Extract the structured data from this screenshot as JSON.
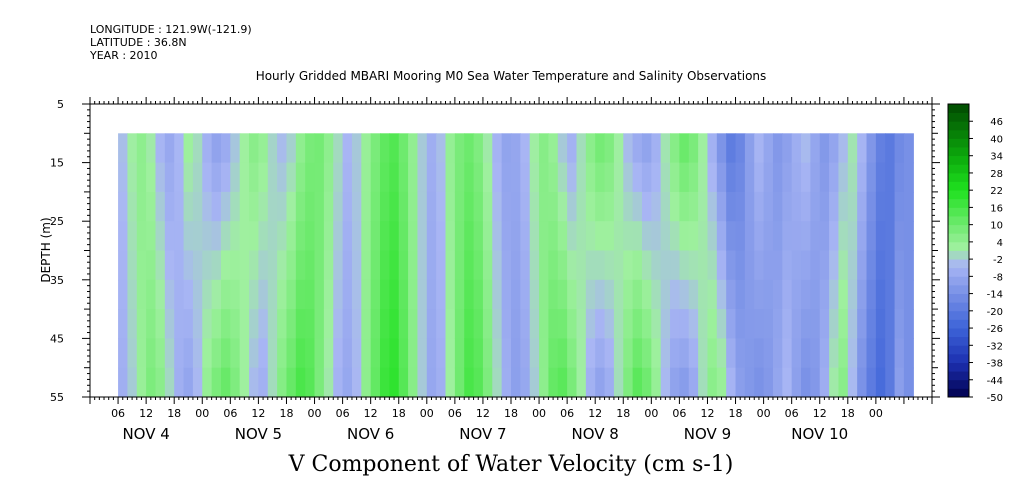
{
  "header": {
    "longitude": "LONGITUDE : 121.9W(-121.9)",
    "latitude": "LATITUDE : 36.8N",
    "year": "YEAR : 2010"
  },
  "chart_data": {
    "type": "heatmap",
    "title": "Hourly Gridded MBARI Mooring M0 Sea Water Temperature and Salinity Observations",
    "xlabel": "V Component of Water Velocity (cm s-1)",
    "ylabel": "DEPTH (m)",
    "ylim": [
      5,
      55
    ],
    "y_inverted": true,
    "y_ticks": [
      5,
      15,
      25,
      35,
      45,
      55
    ],
    "y_data_range": [
      10,
      55
    ],
    "x_range_hours": [
      0,
      180
    ],
    "x_data_range_hours": [
      7,
      176
    ],
    "x_hour_ticks": [
      "06",
      "12",
      "18",
      "00",
      "06",
      "12",
      "18",
      "00",
      "06",
      "12",
      "18",
      "00",
      "06",
      "12",
      "18",
      "00",
      "06",
      "12",
      "18",
      "00",
      "06",
      "12",
      "18",
      "00",
      "06",
      "12",
      "18",
      "00"
    ],
    "x_day_labels": [
      "NOV 4",
      "NOV 5",
      "NOV 6",
      "NOV 7",
      "NOV 8",
      "NOV 9",
      "NOV 10"
    ],
    "colorbar": {
      "labels": [
        46,
        40,
        34,
        28,
        22,
        16,
        10,
        4,
        -2,
        -8,
        -14,
        -20,
        -26,
        -32,
        -38,
        -44,
        -50
      ],
      "min": -50,
      "max": 52,
      "step": 3
    },
    "column_profile": {
      "hours": [
        7,
        9,
        11,
        13,
        15,
        17,
        19,
        21,
        23,
        25,
        27,
        29,
        31,
        33,
        35,
        37,
        39,
        41,
        43,
        45,
        47,
        49,
        51,
        53,
        55,
        57,
        59,
        61,
        63,
        65,
        67,
        69,
        71,
        73,
        75,
        77,
        79,
        81,
        83,
        85,
        87,
        89,
        91,
        93,
        95,
        97,
        99,
        101,
        103,
        105,
        107,
        109,
        111,
        113,
        115,
        117,
        119,
        121,
        123,
        125,
        127,
        129,
        131,
        133,
        135,
        137,
        139,
        141,
        143,
        145,
        147,
        149,
        151,
        153,
        155,
        157,
        159,
        161,
        163,
        165,
        167,
        169,
        171,
        173,
        175
      ],
      "top_values": [
        -3,
        2,
        5,
        1,
        -5,
        -8,
        -4,
        3,
        0,
        -6,
        -10,
        -8,
        -3,
        2,
        6,
        4,
        -1,
        -4,
        -2,
        4,
        8,
        9,
        5,
        0,
        -4,
        -2,
        3,
        8,
        12,
        14,
        10,
        4,
        -2,
        -6,
        -3,
        4,
        8,
        10,
        7,
        1,
        -5,
        -9,
        -8,
        -4,
        2,
        6,
        3,
        -3,
        -6,
        0,
        6,
        10,
        8,
        2,
        -4,
        -8,
        -10,
        -6,
        1,
        7,
        12,
        9,
        2,
        -6,
        -14,
        -20,
        -17,
        -10,
        -4,
        -8,
        -12,
        -10,
        -6,
        -3,
        -8,
        -12,
        -9,
        -4,
        1,
        -4,
        -12,
        -18,
        -20,
        -16,
        -14
      ],
      "bottom_values": [
        -6,
        -2,
        3,
        8,
        6,
        0,
        -6,
        -9,
        -4,
        4,
        9,
        12,
        8,
        2,
        -4,
        -6,
        0,
        7,
        12,
        16,
        14,
        8,
        1,
        -5,
        -8,
        -4,
        5,
        12,
        18,
        20,
        14,
        6,
        -2,
        -8,
        -6,
        2,
        10,
        16,
        14,
        8,
        0,
        -6,
        -10,
        -8,
        -2,
        5,
        12,
        14,
        9,
        2,
        -6,
        -10,
        -7,
        0,
        8,
        14,
        11,
        4,
        -4,
        -10,
        -12,
        -8,
        0,
        6,
        4,
        -4,
        -10,
        -12,
        -14,
        -12,
        -8,
        -4,
        -10,
        -14,
        -12,
        -6,
        2,
        6,
        -4,
        -14,
        -20,
        -24,
        -20,
        -10,
        -14
      ]
    }
  }
}
